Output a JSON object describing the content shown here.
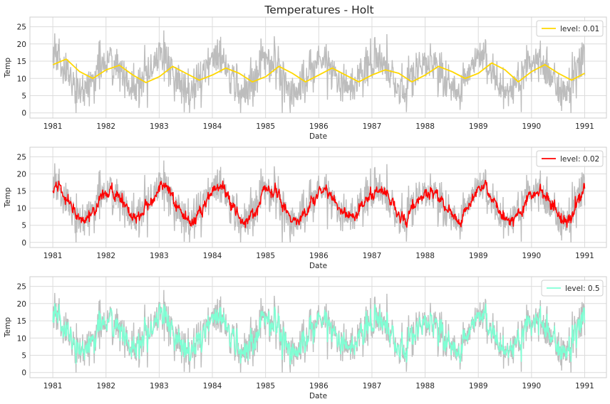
{
  "chart_data": [
    {
      "type": "line",
      "title": "Temperatures - Holt",
      "xlabel": "Date",
      "ylabel": "Temp",
      "xlim": [
        "1980-07-26",
        "1991-05-28"
      ],
      "ylim": [
        -1.5,
        27.8
      ],
      "x_ticks": [
        "1981",
        "1982",
        "1983",
        "1984",
        "1985",
        "1986",
        "1987",
        "1988",
        "1989",
        "1990",
        "1991"
      ],
      "y_ticks": [
        "0",
        "5",
        "10",
        "15",
        "20",
        "25"
      ],
      "grid": true,
      "legend_position": "top-right",
      "series": [
        {
          "role": "observed",
          "color": "#bdbdbd",
          "x_range": [
            "1981-01-01",
            "1990-12-31"
          ],
          "summary": {
            "mean": 11.2,
            "seasonal_amplitude": 4.6,
            "min": 0,
            "max": 26.3,
            "peak_month": "January"
          }
        },
        {
          "name": "level: 0.01",
          "color": "#ffd700",
          "x": [
            "1981-01-01",
            "1981-04-01",
            "1981-07-01",
            "1981-10-01",
            "1982-01-01",
            "1982-04-01",
            "1982-07-01",
            "1982-10-01",
            "1983-01-01",
            "1983-04-01",
            "1983-07-01",
            "1983-10-01",
            "1984-01-01",
            "1984-04-01",
            "1984-07-01",
            "1984-10-01",
            "1985-01-01",
            "1985-04-01",
            "1985-07-01",
            "1985-10-01",
            "1986-01-01",
            "1986-04-01",
            "1986-07-01",
            "1986-10-01",
            "1987-01-01",
            "1987-04-01",
            "1987-07-01",
            "1987-10-01",
            "1988-01-01",
            "1988-04-01",
            "1988-07-01",
            "1988-10-01",
            "1989-01-01",
            "1989-04-01",
            "1989-07-01",
            "1989-10-01",
            "1990-01-01",
            "1990-04-01",
            "1990-07-01",
            "1990-10-01",
            "1990-12-31"
          ],
          "y": [
            14.0,
            15.6,
            12.0,
            10.0,
            12.5,
            13.8,
            11.0,
            8.8,
            10.5,
            13.5,
            11.5,
            9.5,
            11.0,
            13.0,
            11.5,
            9.0,
            10.5,
            13.5,
            11.5,
            9.0,
            11.0,
            13.0,
            11.0,
            9.0,
            11.0,
            12.5,
            11.5,
            9.0,
            11.0,
            13.5,
            12.0,
            10.0,
            11.5,
            14.5,
            12.5,
            9.0,
            12.0,
            14.0,
            11.5,
            9.5,
            11.5
          ]
        },
        {
          "name": "level: 0.02",
          "color": "#ff0000",
          "x_range": [
            "1981-01-01",
            "1990-12-31"
          ],
          "summary": {
            "mean": 11.2,
            "seasonal_amplitude": 4.4,
            "min": 2.8,
            "max": 20.8
          }
        },
        {
          "name": "level: 0.5",
          "color": "#7fffd4",
          "x_range": [
            "1981-01-01",
            "1990-12-31"
          ],
          "summary": {
            "mean": 11.2,
            "seasonal_amplitude": 4.6,
            "min": 0.8,
            "max": 23.5
          }
        }
      ]
    }
  ],
  "panels": [
    {
      "ylabel": "Temp",
      "xlabel": "Date",
      "legend_label": "level: 0.01"
    },
    {
      "ylabel": "Temp",
      "xlabel": "Date",
      "legend_label": "level: 0.02"
    },
    {
      "ylabel": "Temp",
      "xlabel": "Date",
      "legend_label": "level: 0.5"
    }
  ]
}
